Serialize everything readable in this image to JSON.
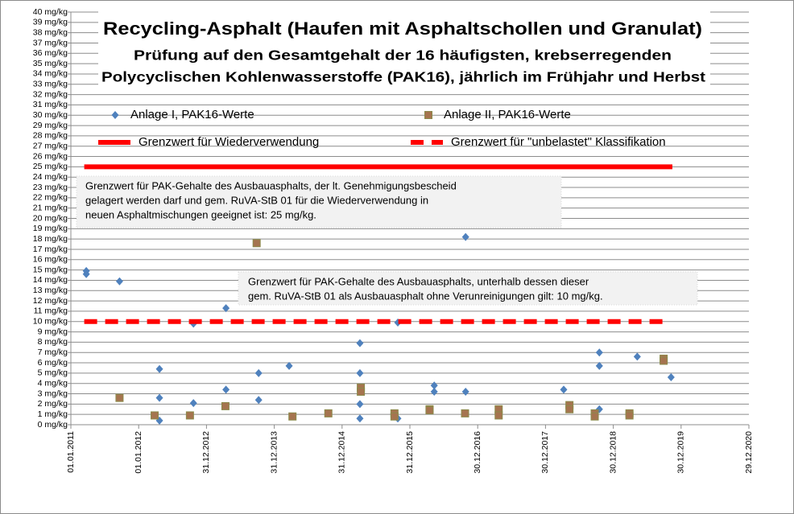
{
  "chart_data": {
    "type": "scatter",
    "title": [
      "Recycling-Asphalt (Haufen mit Asphaltschollen und Granulat)",
      "Prüfung auf den Gesamtgehalt der 16 häufigsten, krebserregenden",
      "Polycyclischen Kohlenwasserstoffe (PAK16), jährlich im Frühjahr und Herbst"
    ],
    "annotations": [
      [
        "Grenzwert für PAK-Gehalte des Ausbauasphalts,  der lt. Genehmigungsbescheid",
        "gelagert werden darf  und gem. RuVA-StB 01 für die Wiederverwendung  in",
        "neuen  Asphaltmischungen  geeignet ist: 25 mg/kg."
      ],
      [
        "Grenzwert für PAK-Gehalte des Ausbauasphalts,  unterhalb  dessen dieser",
        "gem. RuVA-StB 01 als Ausbauasphalt ohne Verunreinigungen  gilt: 10 mg/kg."
      ]
    ],
    "xlim": [
      "01.01.2011",
      "29.12.2020"
    ],
    "xticks": [
      "01.01.2011",
      "01.01.2012",
      "31.12.2012",
      "31.12.2013",
      "31.12.2014",
      "31.12.2015",
      "30.12.2016",
      "30.12.2017",
      "30.12.2018",
      "30.12.2019",
      "29.12.2020"
    ],
    "ylim": [
      0,
      40
    ],
    "yticks": [
      {
        "value": 0,
        "label": "0 mg/kg"
      },
      {
        "value": 1,
        "label": "1 mg/kg"
      },
      {
        "value": 2,
        "label": "2 mg/kg"
      },
      {
        "value": 3,
        "label": "3 mg/kg"
      },
      {
        "value": 4,
        "label": "4 mg/kg"
      },
      {
        "value": 5,
        "label": "5 mg/kg"
      },
      {
        "value": 6,
        "label": "6 mg/kg"
      },
      {
        "value": 7,
        "label": "7 mg/kg"
      },
      {
        "value": 8,
        "label": "8 mg/kg"
      },
      {
        "value": 9,
        "label": "9 mg/kg"
      },
      {
        "value": 10,
        "label": "10 mg/kg"
      },
      {
        "value": 11,
        "label": "11 mg/kg"
      },
      {
        "value": 12,
        "label": "12 mg/kg"
      },
      {
        "value": 13,
        "label": "13 mg/kg"
      },
      {
        "value": 14,
        "label": "14 mg/kg"
      },
      {
        "value": 15,
        "label": "15 mg/kg"
      },
      {
        "value": 16,
        "label": "16 mg/kg"
      },
      {
        "value": 17,
        "label": "17 mg/kg"
      },
      {
        "value": 18,
        "label": "18 mg/kg"
      },
      {
        "value": 19,
        "label": "19 mg/kg"
      },
      {
        "value": 20,
        "label": "20 mg/kg"
      },
      {
        "value": 21,
        "label": "21 mg/kg"
      },
      {
        "value": 22,
        "label": "22 mg/kg"
      },
      {
        "value": 23,
        "label": "23 mg/kg"
      },
      {
        "value": 24,
        "label": "24 mg/kg"
      },
      {
        "value": 25,
        "label": "25 mg/kg"
      },
      {
        "value": 26,
        "label": "26 mg/kg"
      },
      {
        "value": 27,
        "label": "27 mg/kg"
      },
      {
        "value": 28,
        "label": "28 mg/kg"
      },
      {
        "value": 29,
        "label": "29 mg/kg"
      },
      {
        "value": 30,
        "label": "30 mg/kg"
      },
      {
        "value": 31,
        "label": "31 mg/kg"
      },
      {
        "value": 32,
        "label": "32 mg/kg"
      },
      {
        "value": 33,
        "label": "33 mg/kg"
      },
      {
        "value": 34,
        "label": "34 mg/kg"
      },
      {
        "value": 35,
        "label": "35 mg/kg"
      },
      {
        "value": 36,
        "label": "36 mg/kg"
      },
      {
        "value": 37,
        "label": "37 mg/kg"
      },
      {
        "value": 38,
        "label": "38 mg/kg"
      },
      {
        "value": 39,
        "label": "39 mg/kg"
      },
      {
        "value": 40,
        "label": "40 mg/kg"
      }
    ],
    "grid": true,
    "series": [
      {
        "name": "Anlage I, PAK16-Werte",
        "color": "#4f81bd",
        "marker": "diamond",
        "x": [
          "25.03.2011",
          "25.03.2011",
          "20.09.2011",
          "22.04.2012",
          "22.04.2012",
          "22.04.2012",
          "22.10.2012",
          "22.10.2012",
          "15.04.2013",
          "15.04.2013",
          "08.10.2013",
          "08.10.2013",
          "21.03.2014",
          "06.04.2015",
          "06.04.2015",
          "06.04.2015",
          "06.04.2015",
          "27.10.2015",
          "27.10.2015",
          "10.05.2016",
          "10.05.2016",
          "26.10.2016",
          "26.10.2016",
          "07.04.2018",
          "16.10.2018",
          "16.10.2018",
          "16.10.2018",
          "08.05.2019",
          "06.11.2019"
        ],
        "values": [
          14.9,
          14.6,
          13.9,
          5.4,
          2.6,
          0.4,
          2.1,
          9.8,
          11.3,
          3.4,
          5.0,
          2.4,
          5.7,
          7.9,
          5.0,
          2.0,
          0.6,
          9.9,
          0.6,
          3.8,
          3.2,
          3.2,
          18.2,
          3.4,
          7.0,
          5.7,
          1.5,
          6.6,
          4.6
        ]
      },
      {
        "name": "Anlage II, PAK16-Werte",
        "color": "#a5744f",
        "marker": "square",
        "x": [
          "20.09.2011",
          "27.03.2012",
          "03.10.2012",
          "12.04.2013",
          "27.09.2013",
          "08.04.2014",
          "18.10.2014",
          "11.04.2015",
          "11.04.2015",
          "09.10.2015",
          "09.10.2015",
          "15.04.2016",
          "15.04.2016",
          "23.10.2016",
          "22.04.2017",
          "22.04.2017",
          "08.05.2018",
          "08.05.2018",
          "21.09.2018",
          "21.09.2018",
          "27.03.2019",
          "27.03.2019",
          "27.09.2019",
          "27.09.2019"
        ],
        "values": [
          2.6,
          0.9,
          0.9,
          1.8,
          17.6,
          0.8,
          1.1,
          3.6,
          3.2,
          1.1,
          0.8,
          1.5,
          1.4,
          1.1,
          1.5,
          0.9,
          1.9,
          1.5,
          1.1,
          0.8,
          1.1,
          0.9,
          6.4,
          6.2
        ]
      },
      {
        "name": "Grenzwert für Wiederverwendung",
        "color": "#ff0000",
        "line": "solid",
        "x": [
          "14.03.2011",
          "13.11.2019"
        ],
        "values": [
          25,
          25
        ]
      },
      {
        "name": "Grenzwert für \"unbelastet\" Klassifikation",
        "color": "#ff0000",
        "line": "dashed",
        "x": [
          "14.03.2011",
          "01.10.2019"
        ],
        "values": [
          10,
          10
        ]
      }
    ]
  }
}
